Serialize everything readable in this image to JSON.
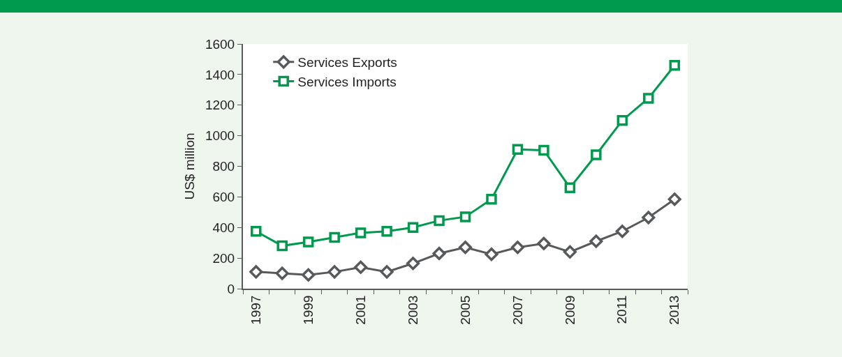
{
  "chart_data": {
    "type": "line",
    "ylabel": "US$ million",
    "categories": [
      "1997",
      null,
      "1999",
      null,
      "2001",
      null,
      "2003",
      null,
      "2005",
      null,
      "2007",
      null,
      "2009",
      null,
      "2011",
      null,
      "2013"
    ],
    "series": [
      {
        "name": "Services Exports",
        "color": "#58595b",
        "marker": "diamond",
        "values": [
          110,
          100,
          90,
          110,
          140,
          110,
          165,
          230,
          270,
          225,
          270,
          295,
          240,
          310,
          375,
          465,
          585
        ]
      },
      {
        "name": "Services Imports",
        "color": "#009a4e",
        "marker": "square",
        "values": [
          375,
          280,
          305,
          335,
          365,
          375,
          400,
          445,
          470,
          585,
          910,
          905,
          660,
          875,
          1100,
          1245,
          1460
        ]
      }
    ],
    "ylim": [
      0,
      1600
    ],
    "yticks": [
      0,
      200,
      400,
      600,
      800,
      1000,
      1200,
      1400,
      1600
    ],
    "grid": false,
    "legend": "top left",
    "line_style": "solid"
  }
}
